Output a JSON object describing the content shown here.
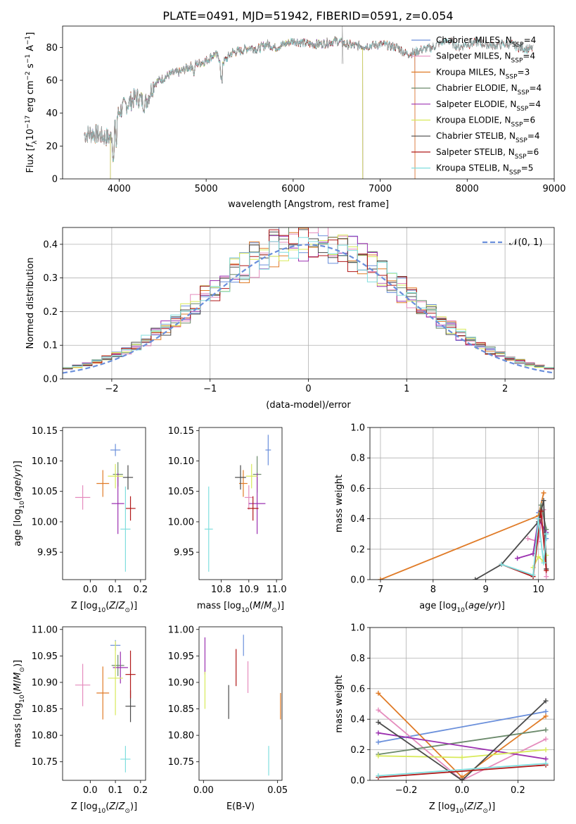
{
  "figure_title": "PLATE=0491, MJD=51942, FIBERID=0591, z=0.054",
  "colors": {
    "Chabrier MILES": "#6a8fdb",
    "Salpeter MILES": "#e58cbd",
    "Kroupa MILES": "#e07b27",
    "Chabrier ELODIE": "#6b8a6b",
    "Salpeter ELODIE": "#9b30b0",
    "Kroupa ELODIE": "#d8ea5a",
    "Chabrier STELIB": "#4a4a4a",
    "Salpeter STELIB": "#b01818",
    "Kroupa STELIB": "#80dede"
  },
  "chart_data": [
    {
      "id": "spectrum",
      "type": "line",
      "xlabel": "wavelength [Angstrom, rest frame]",
      "ylabel": "Flux [f_λ 10^-17 erg cm^-2 s^-1 A^-1]",
      "xlim": [
        3350,
        9000
      ],
      "ylim": [
        0,
        93
      ],
      "xticks": [
        "4000",
        "5000",
        "6000",
        "7000",
        "8000",
        "9000"
      ],
      "yticks": [
        "0",
        "20",
        "40",
        "60",
        "80"
      ],
      "grid": false,
      "legend": "top-right",
      "legend_entries": [
        "Chabrier MILES, N_SSP=4",
        "Salpeter MILES, N_SSP=4",
        "Kroupa MILES, N_SSP=3",
        "Chabrier ELODIE, N_SSP=4",
        "Salpeter ELODIE, N_SSP=4",
        "Kroupa ELODIE, N_SSP=6",
        "Chabrier STELIB, N_SSP=4",
        "Salpeter STELIB, N_SSP=6",
        "Kroupa STELIB, N_SSP=5"
      ],
      "observed_continuum": {
        "x": [
          3600,
          3700,
          3800,
          3900,
          4000,
          4100,
          4200,
          4300,
          4400,
          4500,
          4600,
          4700,
          4800,
          4900,
          5000,
          5100,
          5200,
          5300,
          5400,
          5500,
          5600,
          5700,
          5800,
          5900,
          6000,
          6100,
          6200,
          6300,
          6400,
          6500,
          6600,
          6700,
          6800,
          6900,
          7000,
          7100,
          7200,
          7300,
          7400,
          7500,
          7600,
          7700,
          7800,
          7900,
          8000,
          8100,
          8200,
          8300,
          8400,
          8500,
          8600,
          8700
        ],
        "y": [
          27,
          28,
          26,
          25,
          41,
          46,
          50,
          46,
          58,
          61,
          64,
          65,
          68,
          70,
          72,
          76,
          71,
          77,
          78,
          80,
          79,
          82,
          80,
          82,
          84,
          83,
          82,
          82,
          83,
          84,
          82,
          81,
          81,
          81,
          82,
          81,
          80,
          76,
          77,
          79,
          80,
          83,
          84,
          80,
          82,
          83,
          82,
          81,
          82,
          82,
          80,
          79
        ]
      },
      "model_coverage": {
        "MILES": [
          3600,
          7400
        ],
        "ELODIE": [
          3900,
          6800
        ],
        "STELIB": [
          3600,
          8750
        ]
      }
    },
    {
      "id": "residual-histogram",
      "type": "histogram",
      "xlabel": "(data-model)/error",
      "ylabel": "Normed distribution",
      "xlim": [
        -2.5,
        2.5
      ],
      "ylim": [
        0,
        0.45
      ],
      "xticks": [
        "−2",
        "−1",
        "0",
        "1",
        "2"
      ],
      "yticks": [
        "0.0",
        "0.1",
        "0.2",
        "0.3",
        "0.4"
      ],
      "grid": true,
      "legend": "top-right",
      "reference_label": "𝒩(0, 1)",
      "reference": {
        "mu": 0,
        "sigma": 1
      },
      "bin_width": 0.1
    },
    {
      "id": "age-vs-Z",
      "type": "scatter",
      "xlabel": "Z [log10(Z/Z⊙)]",
      "ylabel": "age [log10(age/yr)]",
      "xlim": [
        -0.11,
        0.22
      ],
      "ylim": [
        9.905,
        10.155
      ],
      "xticks": [
        "0.0",
        "0.1",
        "0.2"
      ],
      "yticks": [
        "9.95",
        "10.00",
        "10.05",
        "10.10",
        "10.15"
      ],
      "points": [
        {
          "model": "Chabrier MILES",
          "x": 0.1,
          "y": 10.118,
          "xerr": 0.02,
          "yerr": 0.01
        },
        {
          "model": "Salpeter MILES",
          "x": -0.03,
          "y": 10.04,
          "xerr": 0.03,
          "yerr": 0.02
        },
        {
          "model": "Kroupa MILES",
          "x": 0.05,
          "y": 10.063,
          "xerr": 0.025,
          "yerr": 0.022
        },
        {
          "model": "Chabrier ELODIE",
          "x": 0.11,
          "y": 10.078,
          "xerr": 0.02,
          "yerr": 0.02
        },
        {
          "model": "Salpeter ELODIE",
          "x": 0.11,
          "y": 10.03,
          "xerr": 0.025,
          "yerr": 0.05
        },
        {
          "model": "Kroupa ELODIE",
          "x": 0.1,
          "y": 10.075,
          "xerr": 0.03,
          "yerr": 0.02
        },
        {
          "model": "Chabrier STELIB",
          "x": 0.15,
          "y": 10.073,
          "xerr": 0.02,
          "yerr": 0.02
        },
        {
          "model": "Salpeter STELIB",
          "x": 0.16,
          "y": 10.022,
          "xerr": 0.02,
          "yerr": 0.02
        },
        {
          "model": "Kroupa STELIB",
          "x": 0.14,
          "y": 9.988,
          "xerr": 0.02,
          "yerr": 0.07
        }
      ]
    },
    {
      "id": "age-vs-mass",
      "type": "scatter",
      "xlabel": "mass [log10(M/M⊙)]",
      "xlim": [
        10.72,
        11.02
      ],
      "ylim": [
        9.905,
        10.155
      ],
      "xticks": [
        "10.8",
        "10.9",
        "11.0"
      ],
      "yticks": [
        "9.95",
        "10.00",
        "10.05",
        "10.10",
        "10.15"
      ],
      "points": [
        {
          "model": "Chabrier MILES",
          "x": 10.97,
          "y": 10.118,
          "xerr": 0.01,
          "yerr": 0.025
        },
        {
          "model": "Salpeter MILES",
          "x": 10.9,
          "y": 10.04,
          "xerr": 0.015,
          "yerr": 0.02
        },
        {
          "model": "Kroupa MILES",
          "x": 10.88,
          "y": 10.063,
          "xerr": 0.015,
          "yerr": 0.022
        },
        {
          "model": "Chabrier ELODIE",
          "x": 10.93,
          "y": 10.078,
          "xerr": 0.015,
          "yerr": 0.03
        },
        {
          "model": "Salpeter ELODIE",
          "x": 10.93,
          "y": 10.03,
          "xerr": 0.03,
          "yerr": 0.05
        },
        {
          "model": "Kroupa ELODIE",
          "x": 10.91,
          "y": 10.075,
          "xerr": 0.02,
          "yerr": 0.02
        },
        {
          "model": "Chabrier STELIB",
          "x": 10.87,
          "y": 10.073,
          "xerr": 0.02,
          "yerr": 0.02
        },
        {
          "model": "Salpeter STELIB",
          "x": 10.915,
          "y": 10.022,
          "xerr": 0.02,
          "yerr": 0.02
        },
        {
          "model": "Kroupa STELIB",
          "x": 10.755,
          "y": 9.988,
          "xerr": 0.015,
          "yerr": 0.07
        }
      ]
    },
    {
      "id": "mass-weight-vs-age",
      "type": "line",
      "xlabel": "age [log10(age/yr)]",
      "ylabel": "mass weight",
      "xlim": [
        6.8,
        10.3
      ],
      "ylim": [
        0,
        1
      ],
      "xticks": [
        "7",
        "8",
        "9",
        "10"
      ],
      "yticks": [
        "0.0",
        "0.2",
        "0.4",
        "0.6",
        "0.8",
        "1.0"
      ],
      "grid": true,
      "series": [
        {
          "model": "Chabrier MILES",
          "x": [
            10.0,
            10.15
          ],
          "y": [
            0.44,
            0.27
          ]
        },
        {
          "model": "Salpeter MILES",
          "x": [
            9.8,
            10.0,
            10.1,
            10.15
          ],
          "y": [
            0.27,
            0.25,
            0.46,
            0.02
          ]
        },
        {
          "model": "Kroupa MILES",
          "x": [
            7.0,
            10.0,
            10.1
          ],
          "y": [
            0.0,
            0.42,
            0.57
          ]
        },
        {
          "model": "Chabrier ELODIE",
          "x": [
            9.9,
            10.05,
            10.15
          ],
          "y": [
            0.17,
            0.49,
            0.33
          ]
        },
        {
          "model": "Salpeter ELODIE",
          "x": [
            9.6,
            9.9,
            10.0,
            10.15
          ],
          "y": [
            0.14,
            0.17,
            0.4,
            0.31
          ]
        },
        {
          "model": "Kroupa ELODIE",
          "x": [
            9.9,
            10.0,
            10.1,
            10.15
          ],
          "y": [
            0.08,
            0.15,
            0.12,
            0.16
          ]
        },
        {
          "model": "Chabrier STELIB",
          "x": [
            8.8,
            9.3,
            10.0,
            10.1,
            10.15
          ],
          "y": [
            0.0,
            0.1,
            0.38,
            0.52,
            0.07
          ]
        },
        {
          "model": "Salpeter STELIB",
          "x": [
            9.3,
            9.9,
            10.05,
            10.15
          ],
          "y": [
            0.1,
            0.02,
            0.45,
            0.06
          ]
        },
        {
          "model": "Kroupa STELIB",
          "x": [
            9.3,
            9.9,
            10.0,
            10.1,
            10.15
          ],
          "y": [
            0.1,
            0.03,
            0.4,
            0.11,
            0.3
          ]
        }
      ]
    },
    {
      "id": "mass-vs-Z",
      "type": "scatter",
      "xlabel": "Z [log10(Z/Z⊙)]",
      "ylabel": "mass [log10(M/M⊙)]",
      "xlim": [
        -0.11,
        0.22
      ],
      "ylim": [
        10.715,
        11.005
      ],
      "xticks": [
        "0.0",
        "0.1",
        "0.2"
      ],
      "yticks": [
        "10.75",
        "10.80",
        "10.85",
        "10.90",
        "10.95",
        "11.00"
      ],
      "points": [
        {
          "model": "Chabrier MILES",
          "x": 0.1,
          "y": 10.97,
          "xerr": 0.02,
          "yerr": 0.01
        },
        {
          "model": "Salpeter MILES",
          "x": -0.03,
          "y": 10.895,
          "xerr": 0.03,
          "yerr": 0.04
        },
        {
          "model": "Kroupa MILES",
          "x": 0.05,
          "y": 10.88,
          "xerr": 0.025,
          "yerr": 0.05
        },
        {
          "model": "Chabrier ELODIE",
          "x": 0.11,
          "y": 10.932,
          "xerr": 0.025,
          "yerr": 0.02
        },
        {
          "model": "Salpeter ELODIE",
          "x": 0.12,
          "y": 10.928,
          "xerr": 0.03,
          "yerr": 0.03
        },
        {
          "model": "Kroupa ELODIE",
          "x": 0.1,
          "y": 10.908,
          "xerr": 0.03,
          "yerr": 0.07
        },
        {
          "model": "Chabrier STELIB",
          "x": 0.16,
          "y": 10.855,
          "xerr": 0.02,
          "yerr": 0.03
        },
        {
          "model": "Salpeter STELIB",
          "x": 0.16,
          "y": 10.915,
          "xerr": 0.02,
          "yerr": 0.045
        },
        {
          "model": "Kroupa STELIB",
          "x": 0.14,
          "y": 10.755,
          "xerr": 0.02,
          "yerr": 0.025
        }
      ]
    },
    {
      "id": "mass-vs-ebv",
      "type": "scatter",
      "xlabel": "E(B-V)",
      "xlim": [
        -0.003,
        0.053
      ],
      "ylim": [
        10.715,
        11.005
      ],
      "xticks": [
        "0.00",
        "0.05"
      ],
      "yticks": [
        "10.75",
        "10.80",
        "10.85",
        "10.90",
        "10.95",
        "11.00"
      ],
      "points": [
        {
          "model": "Chabrier MILES",
          "x": 0.027,
          "y": 10.97,
          "yerr": 0.02
        },
        {
          "model": "Salpeter MILES",
          "x": 0.03,
          "y": 10.91,
          "yerr": 0.03
        },
        {
          "model": "Kroupa MILES",
          "x": 0.052,
          "y": 10.855,
          "yerr": 0.025
        },
        {
          "model": "Salpeter ELODIE",
          "x": 0.001,
          "y": 10.95,
          "yerr": 0.035
        },
        {
          "model": "Kroupa ELODIE",
          "x": 0.001,
          "y": 10.885,
          "yerr": 0.035
        },
        {
          "model": "Chabrier STELIB",
          "x": 0.017,
          "y": 10.863,
          "yerr": 0.032
        },
        {
          "model": "Salpeter STELIB",
          "x": 0.022,
          "y": 10.928,
          "yerr": 0.035
        },
        {
          "model": "Kroupa STELIB",
          "x": 0.044,
          "y": 10.752,
          "yerr": 0.028
        }
      ]
    },
    {
      "id": "mass-weight-vs-Z",
      "type": "line",
      "xlabel": "Z [log10(Z/Z⊙)]",
      "ylabel": "mass weight",
      "xlim": [
        -0.33,
        0.33
      ],
      "ylim": [
        0,
        1
      ],
      "xticks": [
        "−0.2",
        "0.0",
        "0.2"
      ],
      "yticks": [
        "0.0",
        "0.2",
        "0.4",
        "0.6",
        "0.8",
        "1.0"
      ],
      "grid": true,
      "series": [
        {
          "model": "Chabrier MILES",
          "x": [
            -0.3,
            0.3
          ],
          "y": [
            0.25,
            0.45
          ]
        },
        {
          "model": "Salpeter MILES",
          "x": [
            -0.3,
            0.0,
            0.3
          ],
          "y": [
            0.46,
            0.0,
            0.27
          ]
        },
        {
          "model": "Kroupa MILES",
          "x": [
            -0.3,
            0.0,
            0.3
          ],
          "y": [
            0.57,
            0.02,
            0.42
          ]
        },
        {
          "model": "Chabrier ELODIE",
          "x": [
            -0.3,
            0.3
          ],
          "y": [
            0.17,
            0.33
          ]
        },
        {
          "model": "Salpeter ELODIE",
          "x": [
            -0.3,
            0.3
          ],
          "y": [
            0.31,
            0.14
          ]
        },
        {
          "model": "Kroupa ELODIE",
          "x": [
            -0.3,
            0.0,
            0.3
          ],
          "y": [
            0.16,
            0.15,
            0.2
          ]
        },
        {
          "model": "Chabrier STELIB",
          "x": [
            -0.3,
            0.0,
            0.3
          ],
          "y": [
            0.38,
            0.0,
            0.52
          ]
        },
        {
          "model": "Salpeter STELIB",
          "x": [
            -0.3,
            0.3
          ],
          "y": [
            0.02,
            0.1
          ]
        },
        {
          "model": "Kroupa STELIB",
          "x": [
            -0.3,
            0.3
          ],
          "y": [
            0.03,
            0.11
          ]
        }
      ]
    }
  ]
}
